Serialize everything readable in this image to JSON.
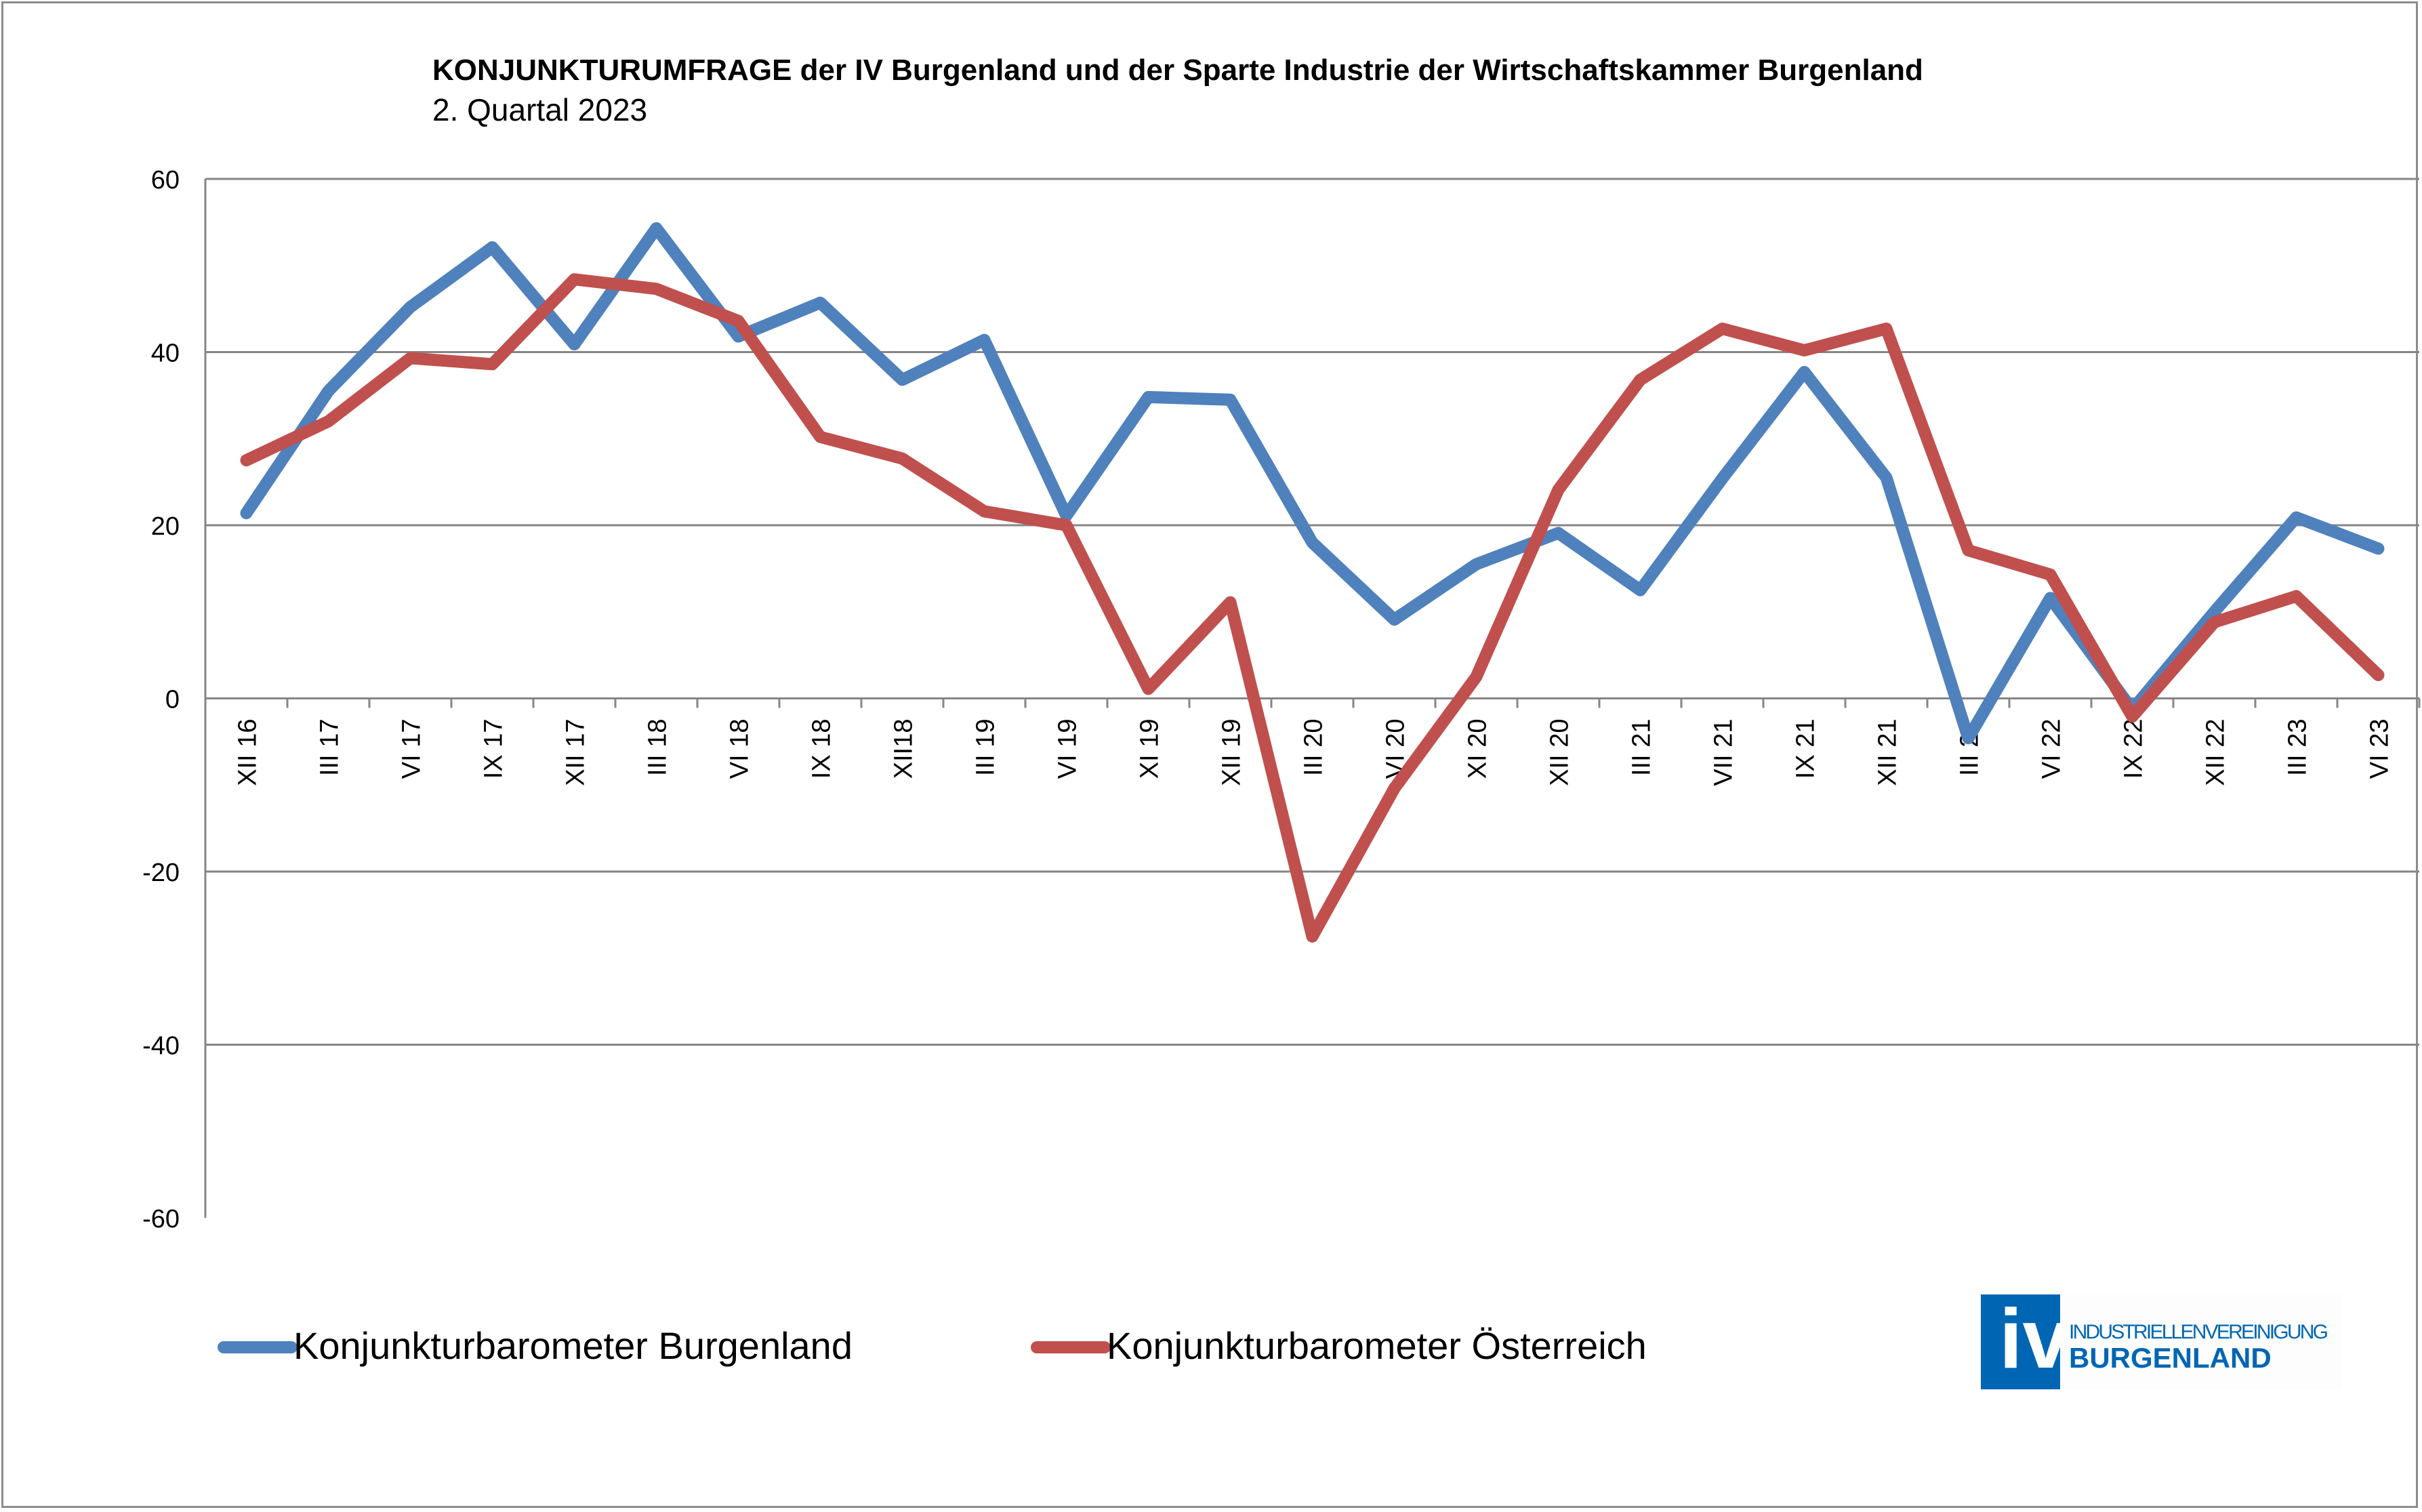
{
  "chart_data": {
    "type": "line",
    "title": "KONJUNKTURUMFRAGE der IV Burgenland und der Sparte Industrie der Wirtschaftskammer Burgenland",
    "subtitle": "2. Quartal 2023",
    "xlabel": "",
    "ylabel": "",
    "ylim": [
      -60,
      60
    ],
    "yticks": [
      "60",
      "40",
      "20",
      "0",
      "-20",
      "-40",
      "-60"
    ],
    "ytick_values": [
      60,
      40,
      20,
      0,
      -20,
      -40,
      -60
    ],
    "grid": true,
    "legend_position": "bottom-left",
    "categories": [
      "XII 16",
      "III 17",
      "VI 17",
      "IX 17",
      "XII 17",
      "III 18",
      "VI 18",
      "IX 18",
      "XII18",
      "III 19",
      "VI 19",
      "XI 19",
      "XII 19",
      "III 20",
      "VI 20",
      "XI 20",
      "XII 20",
      "III 21",
      "VII 21",
      "IX 21",
      "XII 21",
      "III 22",
      "VI 22",
      "IX 22",
      "XII 22",
      "III 23",
      "VI 23"
    ],
    "series": [
      {
        "name": "Konjunkturbarometer Burgenland",
        "color": "#4f81bd",
        "values": [
          21.4,
          35.5,
          45.2,
          52.1,
          40.9,
          54.3,
          41.8,
          45.7,
          36.8,
          41.4,
          21.1,
          34.8,
          34.5,
          18.0,
          9.1,
          15.5,
          19.1,
          12.5,
          25.4,
          37.7,
          25.5,
          -4.6,
          11.6,
          -1.3,
          10.0,
          20.9,
          17.3
        ]
      },
      {
        "name": "Konjunkturbarometer Österreich",
        "color": "#c0504d",
        "values": [
          27.5,
          32.0,
          39.3,
          38.6,
          48.4,
          47.3,
          43.6,
          30.2,
          27.7,
          21.6,
          20.0,
          1.1,
          11.1,
          -27.5,
          -10.4,
          2.5,
          24.1,
          36.8,
          42.7,
          40.2,
          42.7,
          17.1,
          14.3,
          -2.1,
          8.8,
          11.8,
          2.7
        ]
      }
    ]
  },
  "logo": {
    "mark": "iv",
    "line1": "INDUSTRIELLENVEREINIGUNG",
    "line2": "BURGENLAND",
    "color": "#0066b3"
  }
}
